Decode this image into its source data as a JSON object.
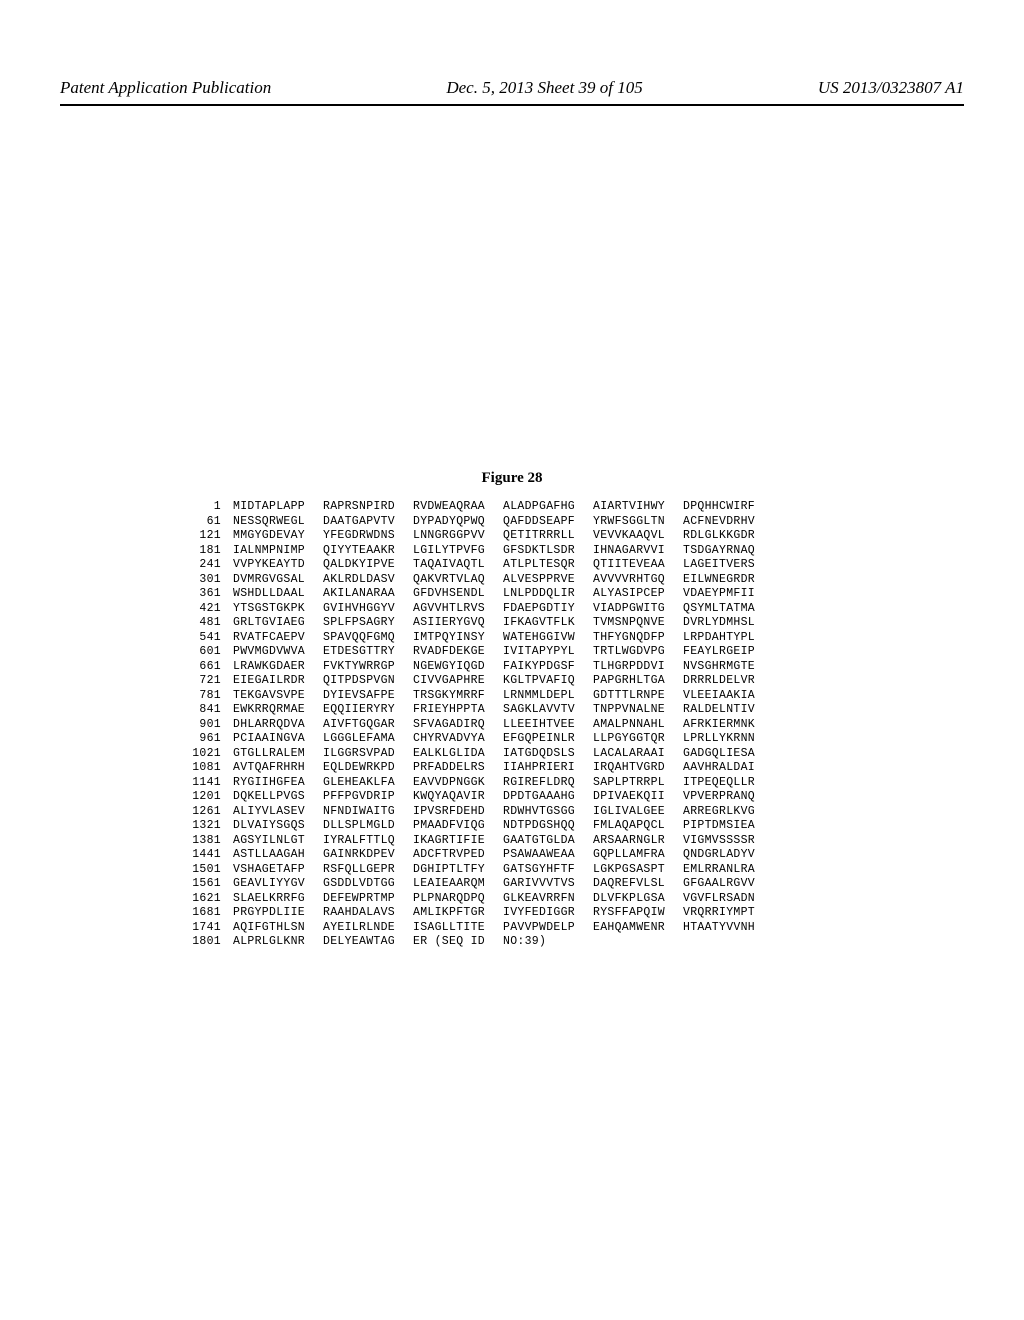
{
  "header": {
    "left": "Patent Application Publication",
    "center": "Dec. 5, 2013  Sheet 39 of 105",
    "right": "US 2013/0323807 A1"
  },
  "figure": {
    "title": "Figure 28"
  },
  "sequence": {
    "rows": [
      {
        "num": "1",
        "cols": [
          "MIDTAPLAPP",
          "RAPRSNPIRD",
          "RVDWEAQRAA",
          "ALADPGAFHG",
          "AIARTVIHWY",
          "DPQHHCWIRF"
        ]
      },
      {
        "num": "61",
        "cols": [
          "NESSQRWEGL",
          "DAATGAPVTV",
          "DYPADYQPWQ",
          "QAFDDSEAPF",
          "YRWFSGGLTN",
          "ACFNEVDRHV"
        ]
      },
      {
        "num": "121",
        "cols": [
          "MMGYGDEVAY",
          "YFEGDRWDNS",
          "LNNGRGGPVV",
          "QETITRRRLL",
          "VEVVKAAQVL",
          "RDLGLKKGDR"
        ]
      },
      {
        "num": "181",
        "cols": [
          "IALNMPNIMP",
          "QIYYTEAAKR",
          "LGILYTPVFG",
          "GFSDKTLSDR",
          "IHNAGARVVI",
          "TSDGAYRNAQ"
        ]
      },
      {
        "num": "241",
        "cols": [
          "VVPYKEAYTD",
          "QALDKYIPVE",
          "TAQAIVAQTL",
          "ATLPLTESQR",
          "QTIITEVEAA",
          "LAGEITVERS"
        ]
      },
      {
        "num": "301",
        "cols": [
          "DVMRGVGSAL",
          "AKLRDLDASV",
          "QAKVRTVLAQ",
          "ALVESPPRVE",
          "AVVVVRHTGQ",
          "EILWNEGRDR"
        ]
      },
      {
        "num": "361",
        "cols": [
          "WSHDLLDAAL",
          "AKILANARAA",
          "GFDVHSENDL",
          "LNLPDDQLIR",
          "ALYASIPCEP",
          "VDAEYPMFII"
        ]
      },
      {
        "num": "421",
        "cols": [
          "YTSGSTGKPK",
          "GVIHVHGGYV",
          "AGVVHTLRVS",
          "FDAEPGDTIY",
          "VIADPGWITG",
          "QSYMLTATMA"
        ]
      },
      {
        "num": "481",
        "cols": [
          "GRLTGVIAEG",
          "SPLFPSAGRY",
          "ASIIERYGVQ",
          "IFKAGVTFLK",
          "TVMSNPQNVE",
          "DVRLYDMHSL"
        ]
      },
      {
        "num": "541",
        "cols": [
          "RVATFCAEPV",
          "SPAVQQFGMQ",
          "IMTPQYINSY",
          "WATEHGGIVW",
          "THFYGNQDFP",
          "LRPDAHTYPL"
        ]
      },
      {
        "num": "601",
        "cols": [
          "PWVMGDVWVA",
          "ETDESGTTRY",
          "RVADFDEKGE",
          "IVITAPYPYL",
          "TRTLWGDVPG",
          "FEAYLRGEIP"
        ]
      },
      {
        "num": "661",
        "cols": [
          "LRAWKGDAER",
          "FVKTYWRRGP",
          "NGEWGYIQGD",
          "FAIKYPDGSF",
          "TLHGRPDDVI",
          "NVSGHRMGTE"
        ]
      },
      {
        "num": "721",
        "cols": [
          "EIEGAILRDR",
          "QITPDSPVGN",
          "CIVVGAPHRE",
          "KGLTPVAFIQ",
          "PAPGRHLTGA",
          "DRRRLDELVR"
        ]
      },
      {
        "num": "781",
        "cols": [
          "TEKGAVSVPE",
          "DYIEVSAFPE",
          "TRSGKYMRRF",
          "LRNMMLDEPL",
          "GDTTTLRNPE",
          "VLEEIAAKIA"
        ]
      },
      {
        "num": "841",
        "cols": [
          "EWKRRQRMAE",
          "EQQIIERYRY",
          "FRIEYHPPTA",
          "SAGKLAVVTV",
          "TNPPVNALNE",
          "RALDELNTIV"
        ]
      },
      {
        "num": "901",
        "cols": [
          "DHLARRQDVA",
          "AIVFTGQGAR",
          "SFVAGADIRQ",
          "LLEEIHTVEE",
          "AMALPNNAHL",
          "AFRKIERMNK"
        ]
      },
      {
        "num": "961",
        "cols": [
          "PCIAAINGVA",
          "LGGGLEFAMA",
          "CHYRVADVYA",
          "EFGQPEINLR",
          "LLPGYGGTQR",
          "LPRLLYKRNN"
        ]
      },
      {
        "num": "1021",
        "cols": [
          "GTGLLRALEM",
          "ILGGRSVPAD",
          "EALKLGLIDA",
          "IATGDQDSLS",
          "LACALARAAI",
          "GADGQLIESA"
        ]
      },
      {
        "num": "1081",
        "cols": [
          "AVTQAFRHRH",
          "EQLDEWRKPD",
          "PRFADDELRS",
          "IIAHPRIERI",
          "IRQAHTVGRD",
          "AAVHRALDAI"
        ]
      },
      {
        "num": "1141",
        "cols": [
          "RYGIIHGFEA",
          "GLEHEAKLFA",
          "EAVVDPNGGK",
          "RGIREFLDRQ",
          "SAPLPTRRPL",
          "ITPEQEQLLR"
        ]
      },
      {
        "num": "1201",
        "cols": [
          "DQKELLPVGS",
          "PFFPGVDRIP",
          "KWQYAQAVIR",
          "DPDTGAAAHG",
          "DPIVAEKQII",
          "VPVERPRANQ"
        ]
      },
      {
        "num": "1261",
        "cols": [
          "ALIYVLASEV",
          "NFNDIWAITG",
          "IPVSRFDEHD",
          "RDWHVTGSGG",
          "IGLIVALGEE",
          "ARREGRLKVG"
        ]
      },
      {
        "num": "1321",
        "cols": [
          "DLVAIYSGQS",
          "DLLSPLMGLD",
          "PMAADFVIQG",
          "NDTPDGSHQQ",
          "FMLAQAPQCL",
          "PIPTDMSIEA"
        ]
      },
      {
        "num": "1381",
        "cols": [
          "AGSYILNLGT",
          "IYRALFTTLQ",
          "IKAGRTIFIE",
          "GAATGTGLDA",
          "ARSAARNGLR",
          "VIGMVSSSSR"
        ]
      },
      {
        "num": "1441",
        "cols": [
          "ASTLLAAGAH",
          "GAINRKDPEV",
          "ADCFTRVPED",
          "PSAWAAWEAA",
          "GQPLLAMFRA",
          "QNDGRLADYV"
        ]
      },
      {
        "num": "1501",
        "cols": [
          "VSHAGETAFP",
          "RSFQLLGEPR",
          "DGHIPTLTFY",
          "GATSGYHFTF",
          "LGKPGSASPT",
          "EMLRRANLRA"
        ]
      },
      {
        "num": "1561",
        "cols": [
          "GEAVLIYYGV",
          "GSDDLVDTGG",
          "LEAIEAARQM",
          "GARIVVVTVS",
          "DAQREFVLSL",
          "GFGAALRGVV"
        ]
      },
      {
        "num": "1621",
        "cols": [
          "SLAELKRRFG",
          "DEFEWPRTMP",
          "PLPNARQDPQ",
          "GLKEAVRRFN",
          "DLVFKPLGSA",
          "VGVFLRSADN"
        ]
      },
      {
        "num": "1681",
        "cols": [
          "PRGYPDLIIE",
          "RAAHDALAVS",
          "AMLIKPFTGR",
          "IVYFEDIGGR",
          "RYSFFAPQIW",
          "VRQRRIYMPT"
        ]
      },
      {
        "num": "1741",
        "cols": [
          "AQIFGTHLSN",
          "AYEILRLNDE",
          "ISAGLLTITE",
          "PAVVPWDELP",
          "EAHQAMWENR",
          "HTAATYVVNH"
        ]
      },
      {
        "num": "1801",
        "cols": [
          "ALPRLGLKNR",
          "DELYEAWTAG",
          "ER (SEQ ID",
          "NO:39)",
          "",
          ""
        ]
      }
    ]
  }
}
